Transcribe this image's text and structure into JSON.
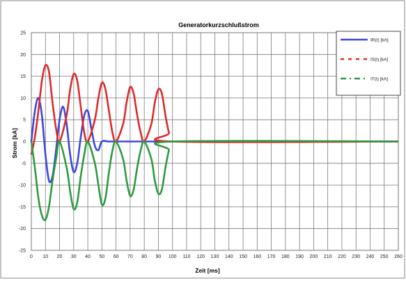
{
  "chart_data": {
    "type": "line",
    "title": "Generatorkurzschlußstrom",
    "xlabel": "Zeit [ms]",
    "ylabel": "Strom [kA]",
    "xlim": [
      0,
      260
    ],
    "ylim": [
      -25,
      25
    ],
    "x_ticks": [
      "0",
      "10",
      "20",
      "30",
      "40",
      "50",
      "60",
      "70",
      "80",
      "90",
      "100",
      "110",
      "120",
      "130",
      "140",
      "150",
      "160",
      "170",
      "180",
      "190",
      "200",
      "210",
      "220",
      "230",
      "240",
      "250",
      "260"
    ],
    "y_ticks": [
      "25",
      "20",
      "15",
      "10",
      "5",
      "0",
      "-5",
      "-10",
      "-15",
      "-20",
      "-25"
    ],
    "grid": true,
    "legend_position": "top-right",
    "series": [
      {
        "name": "IR(t) [kA]",
        "color": "#3b46e0",
        "style": "solid",
        "x": [
          0,
          2.5,
          5,
          7.5,
          10,
          12.5,
          15,
          17.5,
          20,
          22.5,
          25,
          27.5,
          30,
          32.5,
          35,
          37.5,
          40,
          42.5,
          45,
          47.5,
          50,
          55,
          60,
          80,
          100,
          260
        ],
        "y": [
          0,
          7,
          10,
          6,
          -3,
          -9,
          -8,
          -2,
          5,
          8,
          4,
          -3,
          -7,
          -5,
          1,
          6,
          7,
          3,
          -1,
          -2,
          0,
          0,
          0,
          0,
          0,
          0
        ]
      },
      {
        "name": "IS(t) [kA]",
        "color": "#dd2a2a",
        "style": "dashed",
        "x": [
          0,
          2.5,
          5,
          7.5,
          10,
          12.5,
          15,
          17.5,
          20,
          25,
          27.5,
          30,
          32.5,
          35,
          37.5,
          40,
          45,
          47.5,
          50,
          52.5,
          55,
          57.5,
          60,
          65,
          67.5,
          70,
          72.5,
          75,
          77.5,
          80,
          85,
          87.5,
          90,
          92.5,
          95,
          97.5,
          100,
          260
        ],
        "y": [
          -3,
          1,
          7,
          14,
          17.5,
          16,
          9,
          3,
          0,
          6,
          12,
          15.5,
          14,
          8,
          2,
          0,
          5,
          10,
          13.5,
          12,
          7,
          2,
          0,
          4,
          9,
          12.5,
          11,
          6,
          2,
          0,
          4,
          9,
          12,
          11,
          6,
          2,
          0,
          0
        ]
      },
      {
        "name": "IT(t) [kA]",
        "color": "#2e9a3e",
        "style": "dashdot",
        "x": [
          0,
          2.5,
          5,
          7.5,
          10,
          12.5,
          15,
          17.5,
          20,
          25,
          27.5,
          30,
          32.5,
          35,
          37.5,
          40,
          45,
          47.5,
          50,
          52.5,
          55,
          57.5,
          60,
          65,
          67.5,
          70,
          72.5,
          75,
          77.5,
          80,
          85,
          87.5,
          90,
          92.5,
          95,
          97.5,
          100,
          260
        ],
        "y": [
          0,
          -6,
          -13,
          -17,
          -18,
          -15,
          -9,
          -4,
          0,
          -6,
          -11.5,
          -15.5,
          -14,
          -8,
          -3,
          0,
          -5,
          -10,
          -14.5,
          -13,
          -7,
          -2,
          0,
          -4,
          -9,
          -12.5,
          -11,
          -6,
          -2,
          0,
          -4,
          -9,
          -12,
          -11,
          -6,
          -2,
          0,
          0
        ]
      }
    ]
  }
}
